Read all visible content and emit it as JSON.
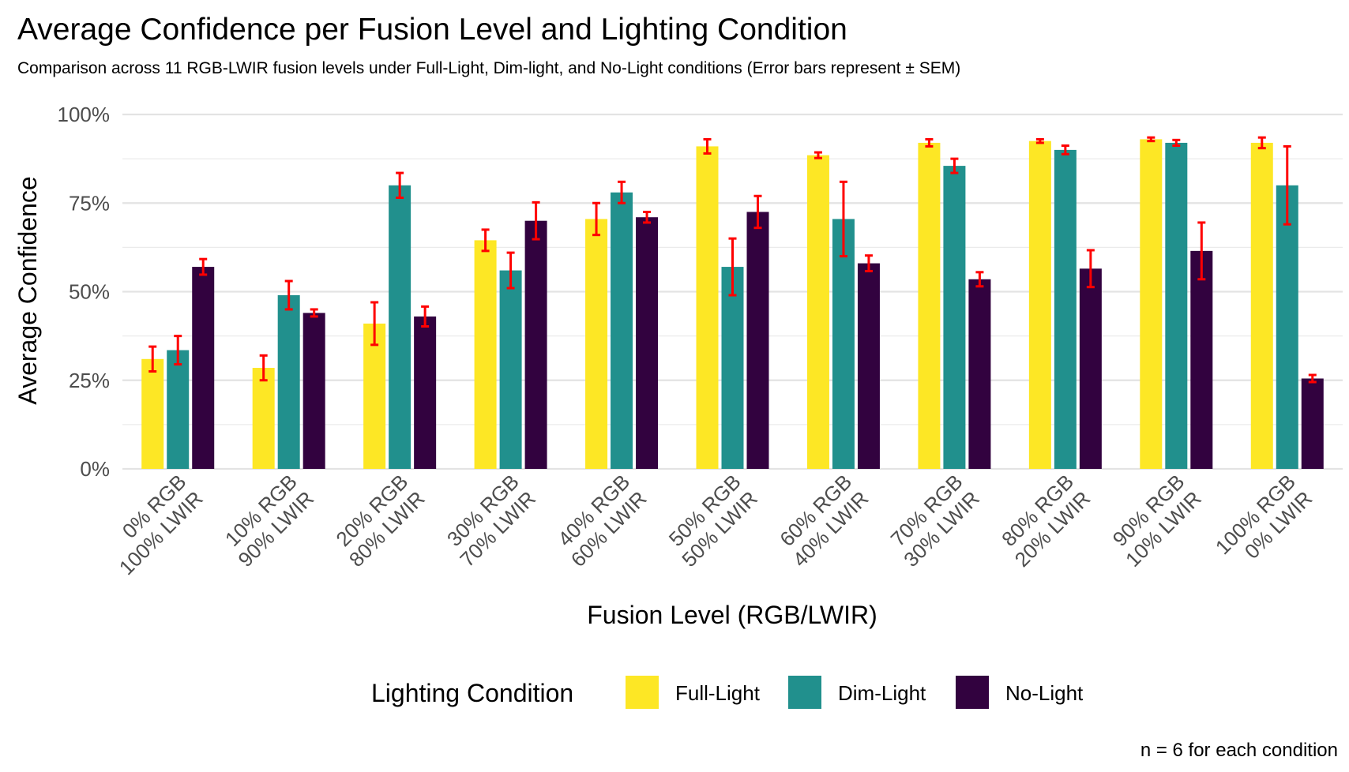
{
  "chart_data": {
    "type": "bar",
    "title": "Average Confidence per Fusion Level and Lighting Condition",
    "subtitle": "Comparison across 11 RGB-LWIR fusion levels under Full-Light, Dim-light, and No-Light conditions (Error bars represent ± SEM)",
    "xlabel": "Fusion Level (RGB/LWIR)",
    "ylabel": "Average Confidence",
    "caption": "n = 6 for each condition",
    "legend_title": "Lighting Condition",
    "legend_position": "bottom",
    "ylim": [
      0,
      1
    ],
    "yticks": [
      {
        "value": 0,
        "label": "0%"
      },
      {
        "value": 0.25,
        "label": "25%"
      },
      {
        "value": 0.5,
        "label": "50%"
      },
      {
        "value": 0.75,
        "label": "75%"
      },
      {
        "value": 1,
        "label": "100%"
      }
    ],
    "grid": true,
    "error_bar_color": "#ff0000",
    "categories": [
      [
        "0% RGB",
        "100% LWIR"
      ],
      [
        "10% RGB",
        "90% LWIR"
      ],
      [
        "20% RGB",
        "80% LWIR"
      ],
      [
        "30% RGB",
        "70% LWIR"
      ],
      [
        "40% RGB",
        "60% LWIR"
      ],
      [
        "50% RGB",
        "50% LWIR"
      ],
      [
        "60% RGB",
        "40% LWIR"
      ],
      [
        "70% RGB",
        "30% LWIR"
      ],
      [
        "80% RGB",
        "20% LWIR"
      ],
      [
        "90% RGB",
        "10% LWIR"
      ],
      [
        "100% RGB",
        "0% LWIR"
      ]
    ],
    "series": [
      {
        "name": "Full-Light",
        "color": "#fde725",
        "values": [
          0.31,
          0.285,
          0.41,
          0.645,
          0.705,
          0.91,
          0.885,
          0.92,
          0.925,
          0.93,
          0.92
        ],
        "errors": [
          0.035,
          0.035,
          0.06,
          0.03,
          0.045,
          0.02,
          0.008,
          0.01,
          0.005,
          0.005,
          0.015
        ]
      },
      {
        "name": "Dim-Light",
        "color": "#21908d",
        "values": [
          0.335,
          0.49,
          0.8,
          0.56,
          0.78,
          0.57,
          0.705,
          0.855,
          0.9,
          0.92,
          0.8
        ],
        "errors": [
          0.04,
          0.04,
          0.035,
          0.05,
          0.03,
          0.08,
          0.105,
          0.02,
          0.012,
          0.008,
          0.11
        ]
      },
      {
        "name": "No-Light",
        "color": "#32023f",
        "values": [
          0.57,
          0.44,
          0.43,
          0.7,
          0.71,
          0.725,
          0.58,
          0.535,
          0.565,
          0.615,
          0.255
        ],
        "errors": [
          0.022,
          0.01,
          0.028,
          0.052,
          0.015,
          0.045,
          0.022,
          0.02,
          0.052,
          0.08,
          0.01
        ]
      }
    ]
  }
}
